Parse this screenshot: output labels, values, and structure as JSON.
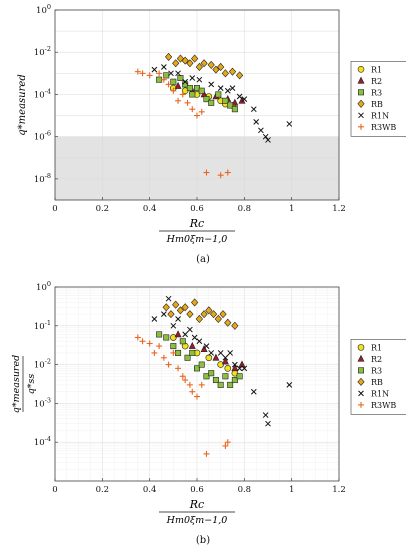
{
  "figure": {
    "captions": [
      "(a)",
      "(b)"
    ]
  },
  "colors": {
    "R1": "#f2e21c",
    "R2": "#9b1b2a",
    "R3": "#8cbf3f",
    "RB": "#e6a817",
    "R1N": "#111111",
    "R3WB": "#e8661f",
    "shade": "#e3e3e3"
  },
  "chart_data": [
    {
      "type": "scatter",
      "panel": "(a)",
      "yscale": "log",
      "xlim": [
        0,
        1.2
      ],
      "ylim": [
        1e-09,
        1
      ],
      "xticks": [
        "0",
        "0.2",
        "0.4",
        "0.6",
        "0.8",
        "1",
        "1.2"
      ],
      "yticks": [
        "10^0",
        "10^-2",
        "10^-4",
        "10^-6",
        "10^-8"
      ],
      "ylabel": "q*measured",
      "xlabel_num": "Rc",
      "xlabel_den": "Hm0ξm−1,0",
      "shaded_region": {
        "y_from": 1e-09,
        "y_to": 1e-06
      },
      "grid": true,
      "legend_position": "right",
      "series": [
        {
          "name": "R1",
          "marker": "circle",
          "points": [
            [
              0.5,
              0.0002
            ],
            [
              0.55,
              0.00015
            ],
            [
              0.6,
              0.0001
            ],
            [
              0.65,
              8e-05
            ],
            [
              0.7,
              5e-05
            ],
            [
              0.72,
              3.5e-05
            ],
            [
              0.75,
              3e-05
            ]
          ]
        },
        {
          "name": "R2",
          "marker": "triangle",
          "points": [
            [
              0.52,
              0.00025
            ],
            [
              0.58,
              0.00015
            ],
            [
              0.63,
              0.0001
            ],
            [
              0.68,
              8e-05
            ],
            [
              0.73,
              6e-05
            ],
            [
              0.76,
              4e-05
            ],
            [
              0.79,
              5e-05
            ]
          ]
        },
        {
          "name": "R3",
          "marker": "square",
          "points": [
            [
              0.44,
              0.0005
            ],
            [
              0.47,
              0.0008
            ],
            [
              0.5,
              0.0004
            ],
            [
              0.53,
              0.0006
            ],
            [
              0.55,
              0.0003
            ],
            [
              0.57,
              0.0002
            ],
            [
              0.58,
              0.0001
            ],
            [
              0.6,
              0.0002
            ],
            [
              0.62,
              0.00015
            ],
            [
              0.64,
              6e-05
            ],
            [
              0.66,
              4e-05
            ],
            [
              0.69,
              0.0001
            ],
            [
              0.72,
              5e-05
            ],
            [
              0.74,
              3e-05
            ],
            [
              0.76,
              2e-05
            ]
          ]
        },
        {
          "name": "RB",
          "marker": "diamond",
          "points": [
            [
              0.48,
              0.006
            ],
            [
              0.51,
              0.003
            ],
            [
              0.53,
              0.005
            ],
            [
              0.55,
              0.004
            ],
            [
              0.57,
              0.003
            ],
            [
              0.59,
              0.005
            ],
            [
              0.61,
              0.002
            ],
            [
              0.63,
              0.003
            ],
            [
              0.66,
              0.0025
            ],
            [
              0.68,
              0.0015
            ],
            [
              0.7,
              0.002
            ],
            [
              0.72,
              0.001
            ],
            [
              0.75,
              0.0012
            ],
            [
              0.78,
              0.0008
            ]
          ]
        },
        {
          "name": "R1N",
          "marker": "x",
          "points": [
            [
              0.42,
              0.0015
            ],
            [
              0.46,
              0.002
            ],
            [
              0.49,
              0.001
            ],
            [
              0.52,
              0.001
            ],
            [
              0.55,
              0.0004
            ],
            [
              0.58,
              0.0006
            ],
            [
              0.61,
              0.0005
            ],
            [
              0.66,
              0.0003
            ],
            [
              0.7,
              0.0002
            ],
            [
              0.73,
              0.00015
            ],
            [
              0.75,
              0.0002
            ],
            [
              0.78,
              8e-05
            ],
            [
              0.8,
              6e-05
            ],
            [
              0.84,
              2e-05
            ],
            [
              0.85,
              5e-06
            ],
            [
              0.87,
              2e-06
            ],
            [
              0.89,
              1e-06
            ],
            [
              0.9,
              7e-07
            ],
            [
              0.99,
              4e-06
            ]
          ]
        },
        {
          "name": "R3WB",
          "marker": "plus",
          "points": [
            [
              0.35,
              0.0012
            ],
            [
              0.37,
              0.001
            ],
            [
              0.4,
              0.0008
            ],
            [
              0.44,
              0.001
            ],
            [
              0.46,
              0.0005
            ],
            [
              0.48,
              0.0003
            ],
            [
              0.5,
              0.00015
            ],
            [
              0.52,
              5e-05
            ],
            [
              0.54,
              0.0001
            ],
            [
              0.56,
              4e-05
            ],
            [
              0.58,
              2e-05
            ],
            [
              0.6,
              1e-05
            ],
            [
              0.62,
              1.5e-05
            ],
            [
              0.64,
              2e-08
            ],
            [
              0.7,
              1.5e-08
            ],
            [
              0.73,
              2e-08
            ]
          ]
        }
      ]
    },
    {
      "type": "scatter",
      "panel": "(b)",
      "yscale": "log",
      "xlim": [
        0,
        1.2
      ],
      "ylim": [
        1e-05,
        1
      ],
      "xticks": [
        "0",
        "0.2",
        "0.4",
        "0.6",
        "0.8",
        "1",
        "1.2"
      ],
      "yticks": [
        "10^0",
        "10^-1",
        "10^-2",
        "10^-3",
        "10^-4"
      ],
      "ylabel_num": "q*measured",
      "ylabel_den": "q*ss",
      "xlabel_num": "Rc",
      "xlabel_den": "Hm0ξm−1,0",
      "grid": true,
      "legend_position": "right",
      "series": [
        {
          "name": "R1",
          "marker": "circle",
          "points": [
            [
              0.5,
              0.05
            ],
            [
              0.55,
              0.03
            ],
            [
              0.6,
              0.02
            ],
            [
              0.65,
              0.015
            ],
            [
              0.7,
              0.01
            ],
            [
              0.73,
              0.008
            ],
            [
              0.76,
              0.006
            ]
          ]
        },
        {
          "name": "R2",
          "marker": "triangle",
          "points": [
            [
              0.52,
              0.06
            ],
            [
              0.58,
              0.03
            ],
            [
              0.63,
              0.025
            ],
            [
              0.68,
              0.015
            ],
            [
              0.72,
              0.012
            ],
            [
              0.76,
              0.008
            ],
            [
              0.79,
              0.01
            ]
          ]
        },
        {
          "name": "R3",
          "marker": "square",
          "points": [
            [
              0.44,
              0.06
            ],
            [
              0.47,
              0.05
            ],
            [
              0.5,
              0.03
            ],
            [
              0.52,
              0.02
            ],
            [
              0.54,
              0.04
            ],
            [
              0.56,
              0.015
            ],
            [
              0.58,
              0.02
            ],
            [
              0.6,
              0.008
            ],
            [
              0.62,
              0.01
            ],
            [
              0.64,
              0.005
            ],
            [
              0.66,
              0.006
            ],
            [
              0.68,
              0.004
            ],
            [
              0.7,
              0.003
            ],
            [
              0.72,
              0.005
            ],
            [
              0.74,
              0.003
            ],
            [
              0.76,
              0.004
            ],
            [
              0.78,
              0.005
            ]
          ]
        },
        {
          "name": "RB",
          "marker": "diamond",
          "points": [
            [
              0.47,
              0.3
            ],
            [
              0.49,
              0.2
            ],
            [
              0.51,
              0.35
            ],
            [
              0.53,
              0.25
            ],
            [
              0.55,
              0.3
            ],
            [
              0.57,
              0.2
            ],
            [
              0.59,
              0.4
            ],
            [
              0.61,
              0.15
            ],
            [
              0.63,
              0.2
            ],
            [
              0.65,
              0.25
            ],
            [
              0.67,
              0.2
            ],
            [
              0.69,
              0.15
            ],
            [
              0.71,
              0.2
            ],
            [
              0.73,
              0.12
            ],
            [
              0.76,
              0.1
            ]
          ]
        },
        {
          "name": "R1N",
          "marker": "x",
          "points": [
            [
              0.42,
              0.15
            ],
            [
              0.46,
              0.2
            ],
            [
              0.48,
              0.5
            ],
            [
              0.5,
              0.1
            ],
            [
              0.52,
              0.15
            ],
            [
              0.55,
              0.06
            ],
            [
              0.57,
              0.08
            ],
            [
              0.59,
              0.05
            ],
            [
              0.61,
              0.04
            ],
            [
              0.64,
              0.03
            ],
            [
              0.66,
              0.02
            ],
            [
              0.7,
              0.02
            ],
            [
              0.72,
              0.015
            ],
            [
              0.74,
              0.02
            ],
            [
              0.76,
              0.01
            ],
            [
              0.78,
              0.008
            ],
            [
              0.8,
              0.008
            ],
            [
              0.84,
              0.002
            ],
            [
              0.89,
              0.0005
            ],
            [
              0.9,
              0.0003
            ],
            [
              0.99,
              0.003
            ]
          ]
        },
        {
          "name": "R3WB",
          "marker": "plus",
          "points": [
            [
              0.35,
              0.05
            ],
            [
              0.37,
              0.04
            ],
            [
              0.4,
              0.035
            ],
            [
              0.42,
              0.02
            ],
            [
              0.44,
              0.03
            ],
            [
              0.46,
              0.015
            ],
            [
              0.48,
              0.01
            ],
            [
              0.5,
              0.02
            ],
            [
              0.52,
              0.008
            ],
            [
              0.54,
              0.005
            ],
            [
              0.55,
              0.004
            ],
            [
              0.57,
              0.003
            ],
            [
              0.58,
              0.002
            ],
            [
              0.6,
              0.0015
            ],
            [
              0.62,
              0.003
            ],
            [
              0.64,
              5e-05
            ],
            [
              0.72,
              8e-05
            ],
            [
              0.73,
              0.0001
            ]
          ]
        }
      ]
    }
  ]
}
